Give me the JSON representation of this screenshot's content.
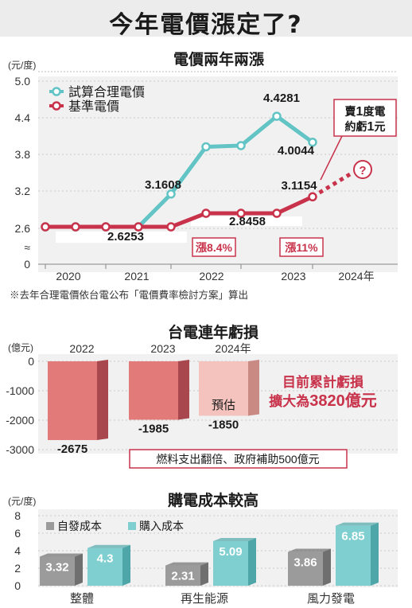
{
  "main_title": "今年電價漲定了?",
  "colors": {
    "teal": "#62c4c4",
    "red": "#c8324a",
    "bar_red": "#e27a7a",
    "bar_pink": "#f4c3bd",
    "gray_bar": "#9b9b9b",
    "teal_bar": "#7fcfd0",
    "panel_bg": "#f1f1f1"
  },
  "chart_data": [
    {
      "type": "line",
      "title": "電價兩年兩漲",
      "ylabel": "(元/度)",
      "ylim": [
        0,
        5.0
      ],
      "yticks": [
        "5.0",
        "4.4",
        "3.8",
        "3.2",
        "2.6",
        "≈",
        "0"
      ],
      "x_ticks": [
        "2020",
        "2021",
        "2022",
        "2023",
        "2024年"
      ],
      "series": [
        {
          "name": "試算合理電價",
          "x": [
            "2020-01",
            "2020-07",
            "2021-01",
            "2021-07",
            "2022-01",
            "2022-07",
            "2023-01",
            "2023-07",
            "2024-01"
          ],
          "values": [
            2.6253,
            2.6253,
            2.6253,
            2.6253,
            3.1608,
            3.93,
            3.95,
            4.4281,
            4.0044
          ]
        },
        {
          "name": "基準電價",
          "x": [
            "2020-01",
            "2020-07",
            "2021-01",
            "2021-07",
            "2022-01",
            "2022-07",
            "2023-01",
            "2023-07",
            "2024-01"
          ],
          "values": [
            2.6253,
            2.6253,
            2.6253,
            2.6253,
            2.6253,
            2.8458,
            2.8458,
            2.8458,
            3.1154
          ]
        }
      ],
      "value_labels": [
        "3.1608",
        "4.4281",
        "4.0044",
        "2.6253",
        "2.8458",
        "3.1154"
      ],
      "annotations": {
        "rise_2022": "漲8.4%",
        "rise_2023": "漲11%",
        "callout": "賣1度電\n約虧1元",
        "question": "?"
      },
      "footnote": "※去年合理電價依台電公布「電價費率檢討方案」算出"
    },
    {
      "type": "bar",
      "title": "台電連年虧損",
      "ylabel": "(億元)",
      "ylim": [
        -3000,
        0
      ],
      "yticks": [
        "0",
        "-1000",
        "-2000",
        "-3000"
      ],
      "categories": [
        "2022",
        "2023",
        "2024年"
      ],
      "values": [
        -2675,
        -1985,
        -1850
      ],
      "value_labels": [
        "-2675",
        "-1985",
        "-1850"
      ],
      "estimate_label": "預估",
      "note": "燃料支出翻倍、政府補助500億元",
      "headline_line1": "目前累計虧損",
      "headline_line2_prefix": "擴大為",
      "headline_line2_value": "3820億元"
    },
    {
      "type": "bar",
      "title": "購電成本較高",
      "ylabel": "(元/度)",
      "ylim": [
        0,
        8
      ],
      "yticks": [
        "8",
        "6",
        "4",
        "2",
        "0"
      ],
      "categories": [
        "整體",
        "再生能源",
        "風力發電"
      ],
      "series": [
        {
          "name": "自發成本",
          "values": [
            3.32,
            2.31,
            3.86
          ]
        },
        {
          "name": "購入成本",
          "values": [
            4.3,
            5.09,
            6.85
          ]
        }
      ],
      "value_labels": [
        [
          "3.32",
          "2.31",
          "3.86"
        ],
        [
          "4.3",
          "5.09",
          "6.85"
        ]
      ]
    }
  ]
}
